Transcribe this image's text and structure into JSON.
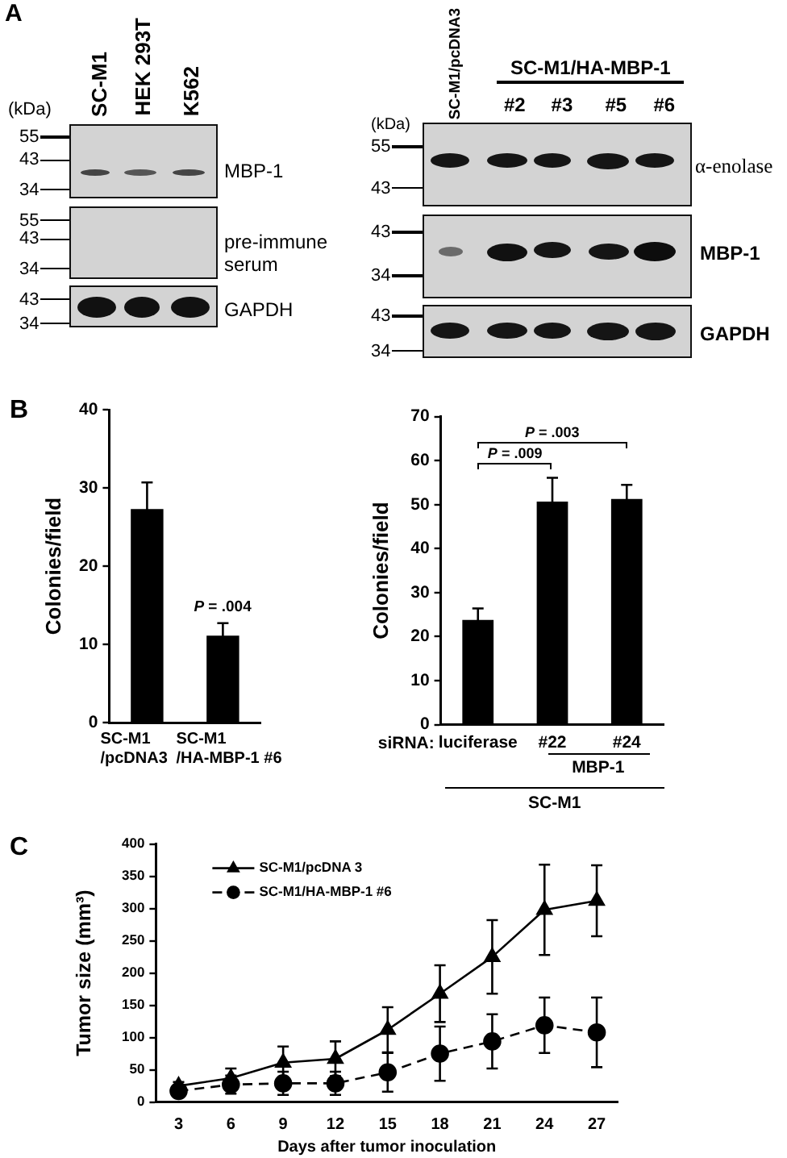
{
  "chart_data": [
    {
      "type": "other",
      "annotations": [
        "A",
        "(kDa)",
        "SC-M1",
        "HEK 293T",
        "K562",
        "55",
        "43",
        "34",
        "55",
        "43",
        "34",
        "43",
        "34",
        "MBP-1",
        "pre-immune serum",
        "GAPDH"
      ]
    },
    {
      "type": "other",
      "annotations": [
        "SC-M1/pcDNA3",
        "SC-M1/HA-MBP-1",
        "#2",
        "#3",
        "#5",
        "#6",
        "(kDa)",
        "55",
        "43",
        "43",
        "34",
        "43",
        "34",
        "α-enolase",
        "MBP-1",
        "GAPDH"
      ]
    },
    {
      "type": "bar",
      "ylabel": "Colonies/field",
      "categories": [
        "SC-M1\n/pcDNA3",
        "SC-M1\n/HA-MBP-1 #6"
      ],
      "values": [
        27.3,
        11.1
      ],
      "errors": [
        3.4,
        1.6
      ],
      "color": "#000000",
      "ylim": [
        0,
        40
      ],
      "yticks": [
        0,
        10,
        20,
        30,
        40
      ],
      "annotations": [
        "B",
        "P = .004"
      ]
    },
    {
      "type": "bar",
      "ylabel": "Colonies/field",
      "categories": [
        "luciferase",
        "#22",
        "#24"
      ],
      "values": [
        23.8,
        50.7,
        51.3
      ],
      "errors": [
        2.6,
        5.4,
        3.2
      ],
      "color": "#000000",
      "ylim": [
        0,
        70
      ],
      "yticks": [
        0,
        10,
        20,
        30,
        40,
        50,
        60,
        70
      ],
      "annotations": [
        "P = .009",
        "P = .003",
        "siRNA:",
        "MBP-1",
        "SC-M1"
      ]
    },
    {
      "type": "line",
      "xlabel": "Days after tumor inoculation",
      "ylabel": "Tumor size (mm³)",
      "x": [
        3,
        6,
        9,
        12,
        15,
        18,
        21,
        24,
        27
      ],
      "xlim": [
        1.7,
        28.2
      ],
      "xticks": [
        3,
        6,
        9,
        12,
        15,
        18,
        21,
        24,
        27
      ],
      "ylim": [
        0,
        400
      ],
      "yticks": [
        0,
        50,
        100,
        150,
        200,
        250,
        300,
        350,
        400
      ],
      "legend": "top left",
      "series": [
        {
          "name": "SC-M1/pcDNA 3",
          "color": "#000000",
          "marker": "triangle",
          "line_style": "solid",
          "values": [
            25,
            37,
            61,
            67,
            112,
            168,
            225,
            298,
            312
          ],
          "errors": [
            6,
            15,
            25,
            27,
            35,
            44,
            57,
            70,
            55
          ]
        },
        {
          "name": "SC-M1/HA-MBP-1 #6",
          "color": "#000000",
          "marker": "circle",
          "line_style": "dashed",
          "values": [
            17,
            27,
            29,
            29,
            46,
            75,
            94,
            119,
            108
          ],
          "errors": [
            5,
            14,
            18,
            18,
            30,
            42,
            42,
            43,
            54
          ]
        }
      ],
      "annotations": [
        "C"
      ]
    }
  ]
}
